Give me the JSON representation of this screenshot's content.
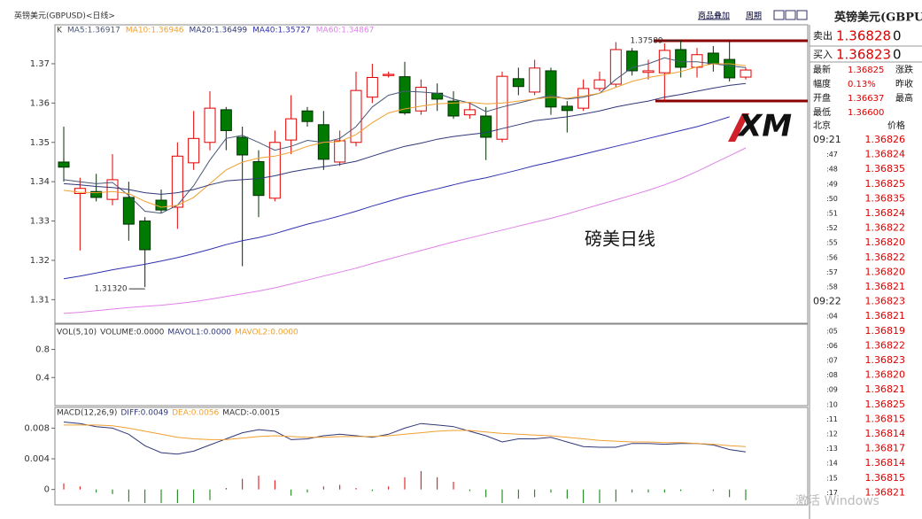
{
  "header": {
    "title": "英镑美元(GBPUSD)<日线>",
    "overlay": "商品叠加",
    "period": "周期"
  },
  "chart_data": [
    {
      "type": "candlestick",
      "legend_prefix": "K",
      "up_color": "#e00000",
      "down_color": "#007a00",
      "open": [
        1.345,
        1.337,
        1.3375,
        1.3355,
        1.336,
        1.33,
        1.3353,
        1.3335,
        1.3448,
        1.35,
        1.3583,
        1.3513,
        1.3451,
        1.3358,
        1.3506,
        1.358,
        1.3545,
        1.345,
        1.35,
        1.3615,
        1.367,
        1.3667,
        1.358,
        1.3625,
        1.3605,
        1.357,
        1.3567,
        1.3508,
        1.3662,
        1.3628,
        1.3682,
        1.3592,
        1.3587,
        1.3637,
        1.3648,
        1.3732,
        1.3678,
        1.3677,
        1.3736,
        1.3691,
        1.3727,
        1.3711,
        1.3666
      ],
      "high": [
        1.354,
        1.341,
        1.342,
        1.347,
        1.34,
        1.331,
        1.338,
        1.35,
        1.358,
        1.363,
        1.359,
        1.354,
        1.348,
        1.353,
        1.362,
        1.359,
        1.358,
        1.353,
        1.368,
        1.37,
        1.368,
        1.3705,
        1.366,
        1.365,
        1.363,
        1.36,
        1.359,
        1.368,
        1.369,
        1.371,
        1.369,
        1.3605,
        1.366,
        1.368,
        1.3755,
        1.374,
        1.371,
        1.3752,
        1.37589,
        1.374,
        1.3745,
        1.3758,
        1.369
      ],
      "low": [
        1.34,
        1.3225,
        1.335,
        1.334,
        1.325,
        1.3132,
        1.332,
        1.328,
        1.343,
        1.348,
        1.348,
        1.3185,
        1.331,
        1.335,
        1.347,
        1.354,
        1.343,
        1.344,
        1.349,
        1.36,
        1.3665,
        1.357,
        1.357,
        1.358,
        1.356,
        1.356,
        1.3455,
        1.35,
        1.362,
        1.362,
        1.357,
        1.3525,
        1.358,
        1.363,
        1.364,
        1.367,
        1.366,
        1.3605,
        1.3665,
        1.3665,
        1.368,
        1.3655,
        1.366
      ],
      "close": [
        1.3437,
        1.3383,
        1.336,
        1.3405,
        1.3292,
        1.3227,
        1.3328,
        1.3465,
        1.351,
        1.3587,
        1.353,
        1.3468,
        1.3365,
        1.35,
        1.356,
        1.3553,
        1.3457,
        1.3504,
        1.3632,
        1.3665,
        1.3673,
        1.3575,
        1.364,
        1.361,
        1.3567,
        1.3583,
        1.3513,
        1.3668,
        1.3642,
        1.3689,
        1.359,
        1.3581,
        1.3637,
        1.3659,
        1.3736,
        1.3682,
        1.3682,
        1.3734,
        1.3691,
        1.3723,
        1.37,
        1.3664,
        1.3684
      ],
      "series": [
        {
          "name": "MA5:1.36917",
          "color": "#4a5878",
          "values": [
            1.3405,
            1.34,
            1.3395,
            1.3398,
            1.3365,
            1.3325,
            1.332,
            1.334,
            1.339,
            1.3455,
            1.351,
            1.3518,
            1.35,
            1.348,
            1.349,
            1.3505,
            1.35,
            1.351,
            1.354,
            1.359,
            1.362,
            1.363,
            1.3628,
            1.3625,
            1.361,
            1.36,
            1.3578,
            1.359,
            1.36,
            1.361,
            1.362,
            1.361,
            1.3615,
            1.3625,
            1.366,
            1.369,
            1.37,
            1.3715,
            1.3705,
            1.3705,
            1.37,
            1.3695,
            1.369
          ]
        },
        {
          "name": "MA10:1.36946",
          "color": "#f0a030",
          "values": [
            1.3378,
            1.3373,
            1.3372,
            1.3375,
            1.337,
            1.335,
            1.3335,
            1.334,
            1.336,
            1.3395,
            1.343,
            1.345,
            1.346,
            1.3465,
            1.3475,
            1.349,
            1.35,
            1.3502,
            1.352,
            1.355,
            1.3575,
            1.3585,
            1.3592,
            1.3598,
            1.36,
            1.3602,
            1.3598,
            1.36,
            1.3605,
            1.361,
            1.3615,
            1.3612,
            1.3618,
            1.3625,
            1.364,
            1.3655,
            1.3665,
            1.3672,
            1.368,
            1.3692,
            1.37,
            1.37,
            1.3695
          ]
        },
        {
          "name": "MA20:1.36499",
          "color": "#303878",
          "values": [
            1.3395,
            1.3392,
            1.3388,
            1.3385,
            1.338,
            1.3372,
            1.3368,
            1.3372,
            1.338,
            1.3392,
            1.3402,
            1.3405,
            1.3408,
            1.3415,
            1.3425,
            1.3432,
            1.3438,
            1.3444,
            1.3452,
            1.3465,
            1.3478,
            1.349,
            1.3498,
            1.3508,
            1.3515,
            1.352,
            1.3525,
            1.3535,
            1.3545,
            1.3555,
            1.356,
            1.3565,
            1.3572,
            1.358,
            1.359,
            1.3598,
            1.3605,
            1.3615,
            1.3622,
            1.363,
            1.3638,
            1.3645,
            1.365
          ]
        },
        {
          "name": "MA40:1.35727",
          "color": "#3030b0",
          "values": [
            1.3153,
            1.316,
            1.3168,
            1.3176,
            1.3183,
            1.319,
            1.3198,
            1.3207,
            1.3217,
            1.3228,
            1.324,
            1.325,
            1.3258,
            1.3268,
            1.328,
            1.3292,
            1.3302,
            1.3313,
            1.3325,
            1.3338,
            1.335,
            1.3362,
            1.3372,
            1.3382,
            1.3392,
            1.3402,
            1.341,
            1.342,
            1.343,
            1.3441,
            1.345,
            1.346,
            1.347,
            1.348,
            1.349,
            1.35,
            1.351,
            1.352,
            1.353,
            1.354,
            1.3552,
            1.3565,
            null
          ]
        },
        {
          "name": "MA60:1.34867",
          "color": "#e080e8",
          "values": [
            1.3065,
            1.3068,
            1.3072,
            1.3076,
            1.308,
            1.3083,
            1.3086,
            1.309,
            1.3095,
            1.3101,
            1.3108,
            1.3115,
            1.3122,
            1.313,
            1.314,
            1.315,
            1.316,
            1.317,
            1.318,
            1.3192,
            1.3203,
            1.3214,
            1.3225,
            1.3236,
            1.3247,
            1.3257,
            1.3267,
            1.3277,
            1.3287,
            1.3297,
            1.3307,
            1.3318,
            1.333,
            1.3342,
            1.3354,
            1.3366,
            1.3378,
            1.3392,
            1.3408,
            1.3426,
            1.3446,
            1.3466,
            1.3486
          ]
        }
      ],
      "ylim": [
        1.304,
        1.3799
      ],
      "yticks": [
        1.31,
        1.32,
        1.33,
        1.34,
        1.35,
        1.36,
        1.37
      ],
      "annotations": [
        {
          "value": 1.37589,
          "label": "1.37589"
        },
        {
          "value": 1.3132,
          "label": "1.31320"
        }
      ],
      "caption": "磅美日线"
    },
    {
      "type": "volume",
      "legend": [
        {
          "text": "VOL(5,10)",
          "color": "#333333"
        },
        {
          "text": "VOLUME:0.0000",
          "color": "#333333"
        },
        {
          "text": "MAVOL1:0.0000",
          "color": "#303878"
        },
        {
          "text": "MAVOL2:0.0000",
          "color": "#f0a030"
        }
      ],
      "ylim": [
        0,
        1.16
      ],
      "yticks": [
        0.4,
        0.8
      ]
    },
    {
      "type": "macd",
      "legend_prefix": "MACD(12,26,9)",
      "series": [
        {
          "name": "DIFF:0.0049",
          "color": "#303878",
          "values": [
            0.0088,
            0.0086,
            0.0082,
            0.008,
            0.0072,
            0.0057,
            0.0048,
            0.0046,
            0.005,
            0.0058,
            0.0066,
            0.0074,
            0.0078,
            0.0076,
            0.0065,
            0.0066,
            0.007,
            0.0072,
            0.007,
            0.0068,
            0.0072,
            0.008,
            0.0086,
            0.0084,
            0.0082,
            0.0076,
            0.007,
            0.0062,
            0.0066,
            0.0066,
            0.0068,
            0.0062,
            0.0056,
            0.0055,
            0.0055,
            0.006,
            0.006,
            0.0059,
            0.006,
            0.006,
            0.0058,
            0.0052,
            0.0049
          ]
        },
        {
          "name": "DEA:0.0056",
          "color": "#f0a030",
          "values": [
            0.0084,
            0.0084,
            0.0084,
            0.0083,
            0.008,
            0.0076,
            0.0072,
            0.0068,
            0.0066,
            0.0065,
            0.0065,
            0.0067,
            0.0069,
            0.007,
            0.0069,
            0.0068,
            0.0068,
            0.0069,
            0.0069,
            0.0069,
            0.007,
            0.0072,
            0.0074,
            0.0076,
            0.0077,
            0.0077,
            0.0075,
            0.0073,
            0.0072,
            0.0071,
            0.007,
            0.0068,
            0.0066,
            0.0064,
            0.0063,
            0.0062,
            0.0062,
            0.0061,
            0.0061,
            0.006,
            0.0059,
            0.0057,
            0.0056
          ]
        },
        {
          "name": "MACD:-0.0015",
          "color": "#333333",
          "values": [
            0.0008,
            0.0004,
            -0.0004,
            -0.0006,
            -0.0016,
            -0.0038,
            -0.0048,
            -0.0044,
            -0.0032,
            -0.0014,
            0.0002,
            0.0014,
            0.0018,
            0.0012,
            -0.0008,
            -0.0004,
            0.0004,
            0.0006,
            0.0002,
            -0.0002,
            0.0004,
            0.0016,
            0.0024,
            0.0016,
            0.001,
            -0.0002,
            -0.001,
            -0.0022,
            -0.0012,
            -0.001,
            -0.0004,
            -0.0012,
            -0.002,
            -0.0018,
            -0.0016,
            -0.0004,
            -0.0004,
            -0.0004,
            -0.0002,
            0,
            -0.0002,
            -0.001,
            -0.0014
          ]
        }
      ],
      "ylim": [
        -0.002,
        0.0107
      ],
      "yticks": [
        0,
        0.004,
        0.008
      ]
    }
  ],
  "logo": "XM",
  "quote_panel": {
    "title": "英镑美元(GBPU",
    "rows": [
      {
        "label": "卖出",
        "value": "1.36828",
        "extra": "0"
      },
      {
        "label": "买入",
        "value": "1.36823",
        "extra": "0"
      },
      {
        "label": "最新",
        "value": "1.36825",
        "extra": "涨跌"
      },
      {
        "label": "幅度",
        "value": "0.13%",
        "extra": "昨收"
      },
      {
        "label": "开盘",
        "value": "1.36637",
        "extra": "最高"
      },
      {
        "label": "最低",
        "value": "1.36600"
      }
    ],
    "ticks_header": [
      "北京",
      "价格"
    ],
    "ticks": [
      {
        "time": "09:21",
        "price": "1.36826"
      },
      {
        "time": ":47",
        "price": "1.36824"
      },
      {
        "time": ":48",
        "price": "1.36835"
      },
      {
        "time": ":49",
        "price": "1.36825"
      },
      {
        "time": ":50",
        "price": "1.36835"
      },
      {
        "time": ":51",
        "price": "1.36824"
      },
      {
        "time": ":52",
        "price": "1.36822"
      },
      {
        "time": ":55",
        "price": "1.36820"
      },
      {
        "time": ":56",
        "price": "1.36822"
      },
      {
        "time": ":57",
        "price": "1.36820"
      },
      {
        "time": ":58",
        "price": "1.36821"
      },
      {
        "time": "09:22",
        "price": "1.36823"
      },
      {
        "time": ":04",
        "price": "1.36821"
      },
      {
        "time": ":05",
        "price": "1.36819"
      },
      {
        "time": ":06",
        "price": "1.36822"
      },
      {
        "time": ":07",
        "price": "1.36823"
      },
      {
        "time": ":08",
        "price": "1.36820"
      },
      {
        "time": ":09",
        "price": "1.36821"
      },
      {
        "time": ":10",
        "price": "1.36825"
      },
      {
        "time": ":11",
        "price": "1.36815"
      },
      {
        "time": ":12",
        "price": "1.36814"
      },
      {
        "time": ":13",
        "price": "1.36817"
      },
      {
        "time": ":14",
        "price": "1.36814"
      },
      {
        "time": ":15",
        "price": "1.36815"
      },
      {
        "time": ":17",
        "price": "1.36821"
      }
    ]
  },
  "watermark": "激活 Windows"
}
